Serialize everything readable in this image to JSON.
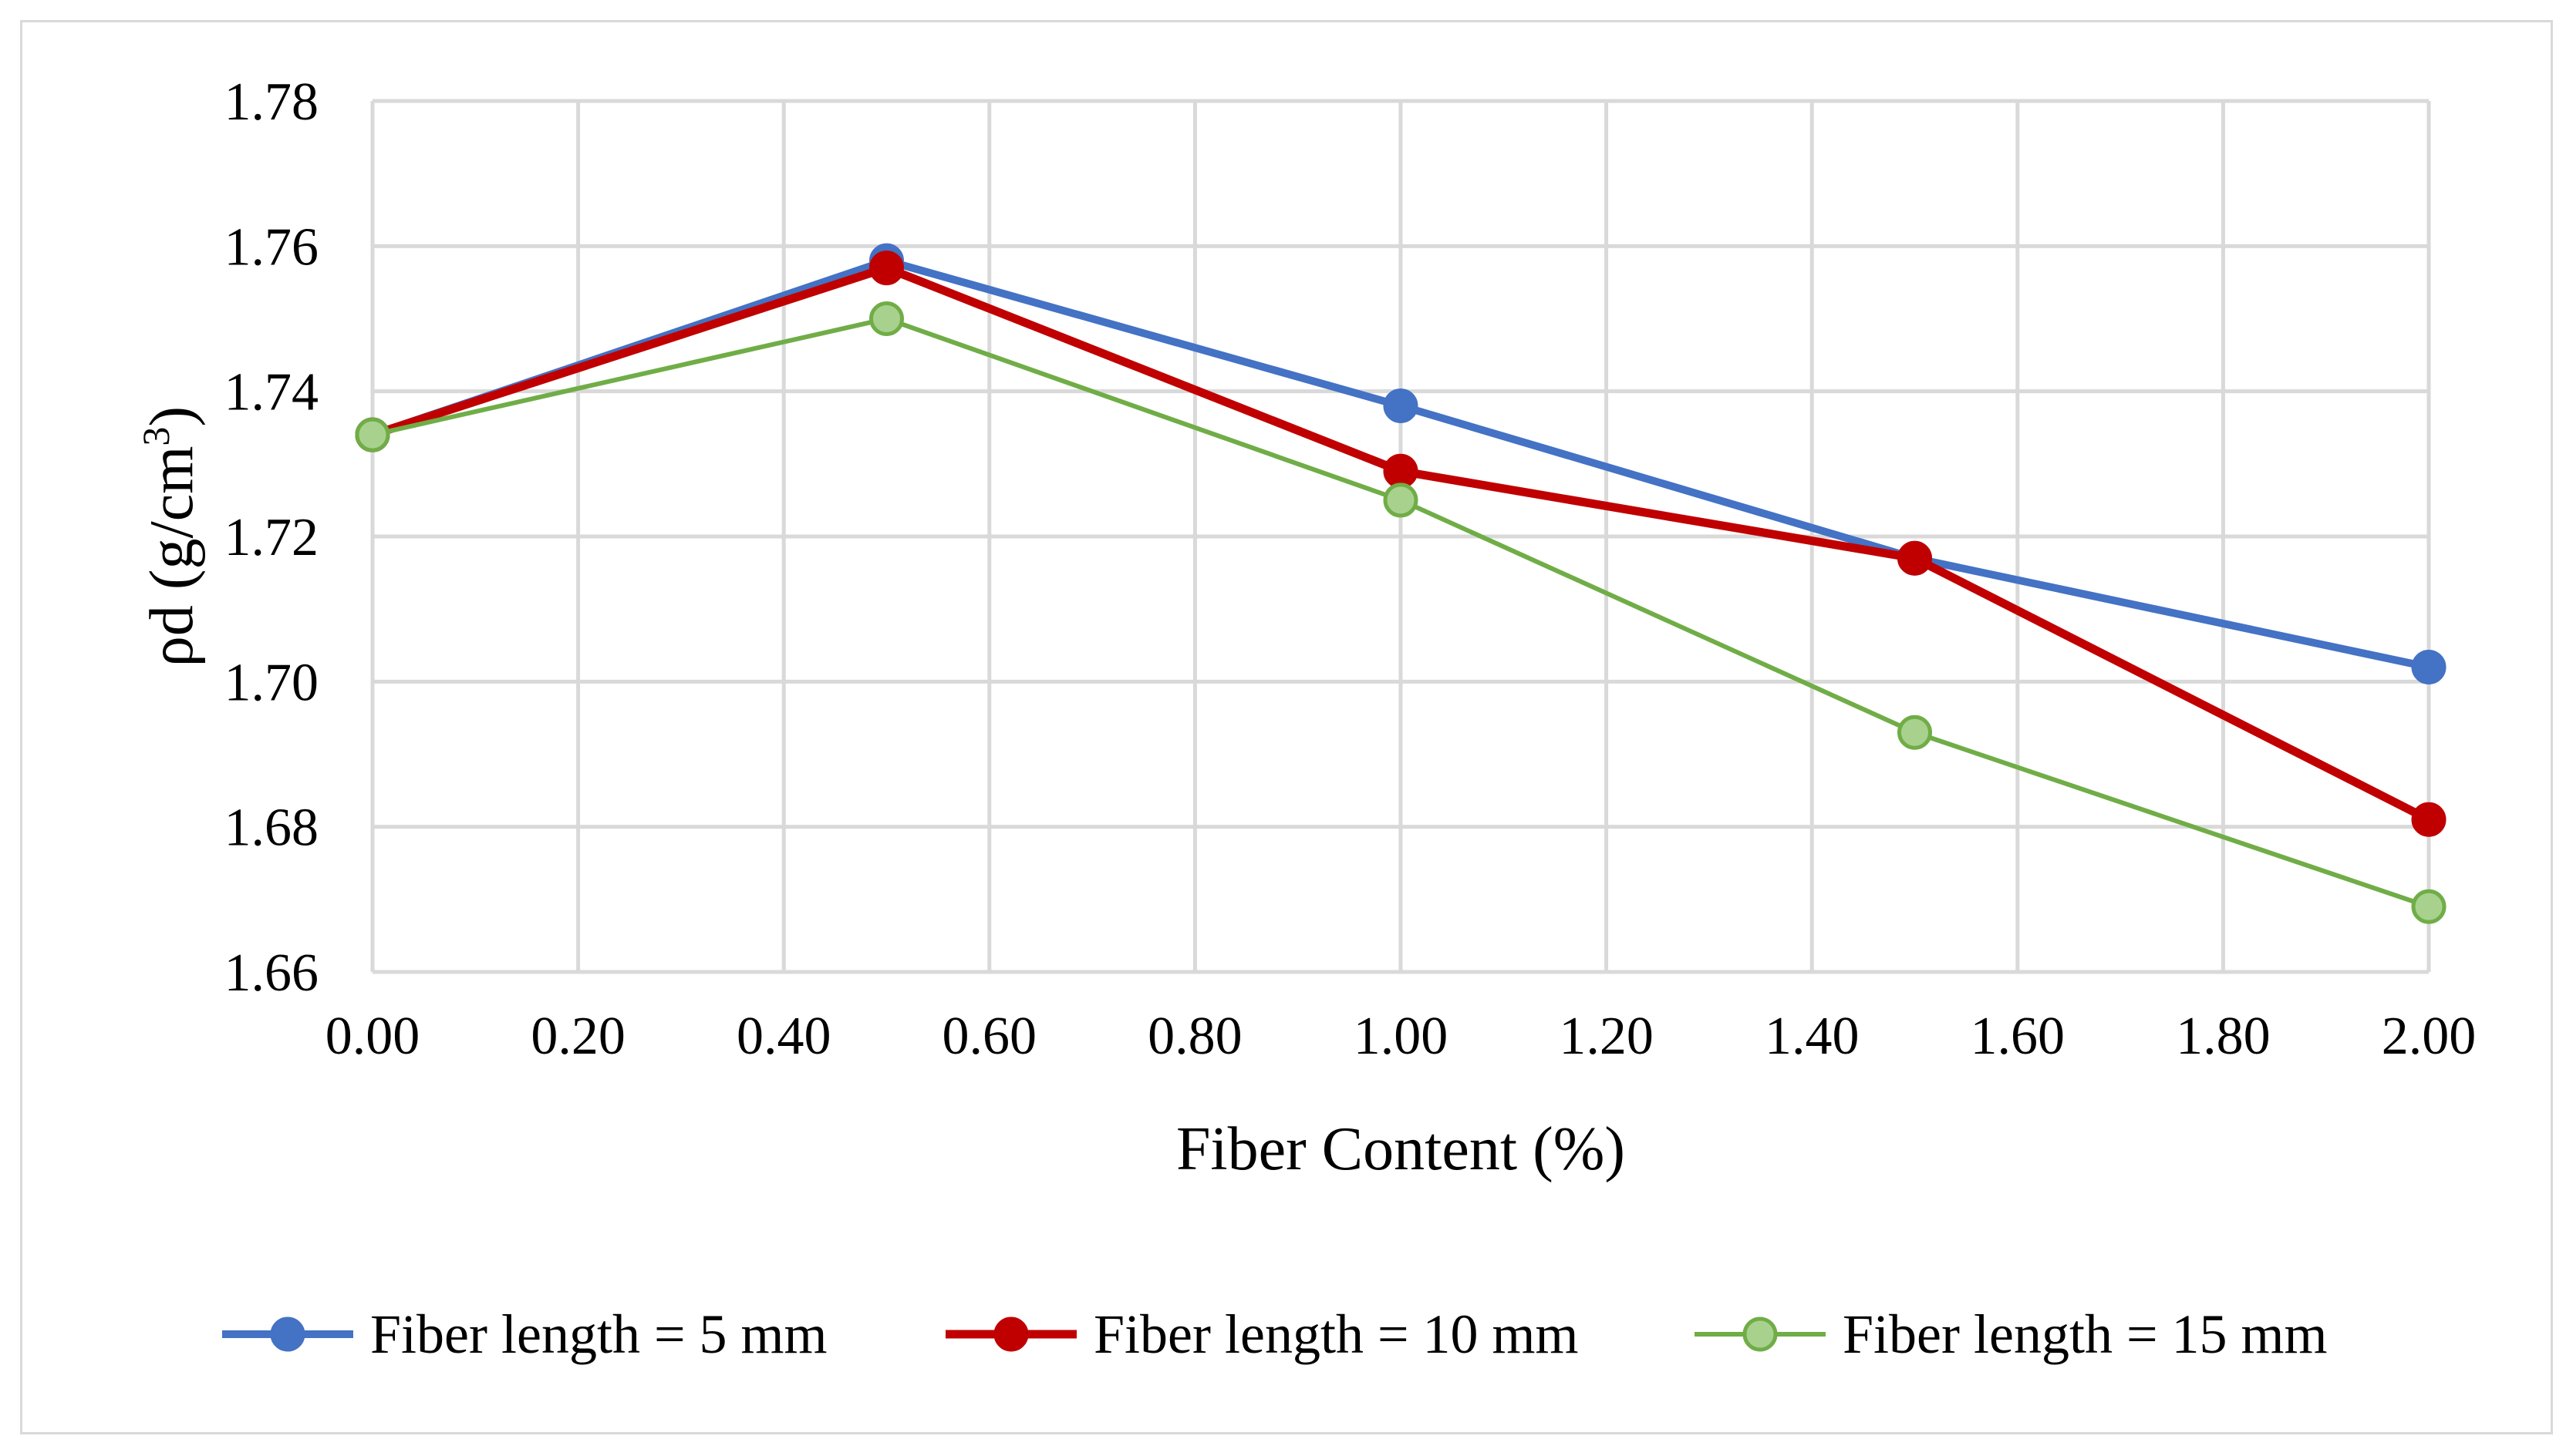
{
  "chart_data": {
    "type": "line",
    "title": "",
    "xlabel": "Fiber Content (%)",
    "ylabel_main": "ρd (g/cm",
    "ylabel_sup": "3",
    "ylabel_close": ")",
    "ylabel": "ρd (g/cm³)",
    "xlim": [
      0,
      2
    ],
    "ylim": [
      1.66,
      1.78
    ],
    "x_ticks": [
      0,
      0.2,
      0.4,
      0.6,
      0.8,
      1.0,
      1.2,
      1.4,
      1.6,
      1.8,
      2.0
    ],
    "x_tick_labels": [
      "0.00",
      "0.20",
      "0.40",
      "0.60",
      "0.80",
      "1.00",
      "1.20",
      "1.40",
      "1.60",
      "1.80",
      "2.00"
    ],
    "y_ticks": [
      1.66,
      1.68,
      1.7,
      1.72,
      1.74,
      1.76,
      1.78
    ],
    "y_tick_labels": [
      "1.66",
      "1.68",
      "1.70",
      "1.72",
      "1.74",
      "1.76",
      "1.78"
    ],
    "grid": true,
    "legend_position": "bottom",
    "x": [
      0,
      0.5,
      1.0,
      1.5,
      2.0
    ],
    "series": [
      {
        "name": "Fiber length = 5 mm",
        "values": [
          1.734,
          1.758,
          1.738,
          1.717,
          1.702
        ],
        "color": "#4472c4",
        "marker_fill": "#4472c4",
        "marker_stroke": "#4472c4"
      },
      {
        "name": "Fiber length = 10 mm",
        "values": [
          1.734,
          1.757,
          1.729,
          1.717,
          1.681
        ],
        "color": "#c00000",
        "marker_fill": "#c00000",
        "marker_stroke": "#c00000"
      },
      {
        "name": "Fiber length = 15 mm",
        "values": [
          1.734,
          1.75,
          1.725,
          1.693,
          1.669
        ],
        "color": "#70ad47",
        "marker_fill": "#a9d18e",
        "marker_stroke": "#70ad47"
      }
    ]
  }
}
